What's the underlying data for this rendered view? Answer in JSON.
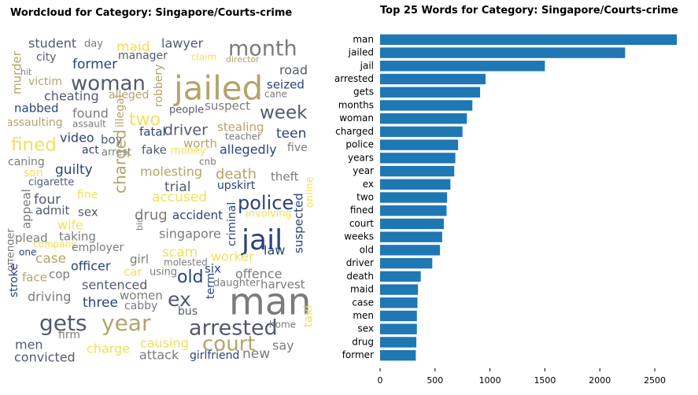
{
  "wordcloud": {
    "title": "Wordcloud for Category: Singapore/Courts-crime",
    "palette": [
      "#B4A46A",
      "#29447A",
      "#7B7B7B",
      "#F0E15A",
      "#535A6E"
    ],
    "words": [
      {
        "text": "student",
        "color": "#535A6E"
      },
      {
        "text": "day",
        "color": "#7B7B7B"
      },
      {
        "text": "maid",
        "color": "#F0E15A"
      },
      {
        "text": "lawyer",
        "color": "#535A6E"
      },
      {
        "text": "month",
        "color": "#7B7B7B"
      },
      {
        "text": "city",
        "color": "#535A6E"
      },
      {
        "text": "manager",
        "color": "#535A6E"
      },
      {
        "text": "claim",
        "color": "#F0E15A"
      },
      {
        "text": "director",
        "color": "#B4A46A"
      },
      {
        "text": "former",
        "color": "#29447A"
      },
      {
        "text": "road",
        "color": "#535A6E"
      },
      {
        "text": "murder",
        "color": "#B4A46A"
      },
      {
        "text": "hit",
        "color": "#7B7B7B"
      },
      {
        "text": "victim",
        "color": "#B4A46A"
      },
      {
        "text": "woman",
        "color": "#535A6E"
      },
      {
        "text": "jailed",
        "color": "#B4A46A"
      },
      {
        "text": "robbery",
        "color": "#B4A46A"
      },
      {
        "text": "seized",
        "color": "#29447A"
      },
      {
        "text": "cane",
        "color": "#7B7B7B"
      },
      {
        "text": "cheating",
        "color": "#535A6E"
      },
      {
        "text": "alleged",
        "color": "#B4A46A"
      },
      {
        "text": "nabbed",
        "color": "#29447A"
      },
      {
        "text": "found",
        "color": "#7B7B7B"
      },
      {
        "text": "illegal",
        "color": "#B4A46A"
      },
      {
        "text": "people",
        "color": "#535A6E"
      },
      {
        "text": "suspect",
        "color": "#7B7B7B"
      },
      {
        "text": "week",
        "color": "#535A6E"
      },
      {
        "text": "assaulting",
        "color": "#B4A46A"
      },
      {
        "text": "assault",
        "color": "#7B7B7B"
      },
      {
        "text": "two",
        "color": "#F0E15A"
      },
      {
        "text": "fatal",
        "color": "#29447A"
      },
      {
        "text": "driver",
        "color": "#535A6E"
      },
      {
        "text": "stealing",
        "color": "#B4A46A"
      },
      {
        "text": "teacher",
        "color": "#7B7B7B"
      },
      {
        "text": "teen",
        "color": "#29447A"
      },
      {
        "text": "fined",
        "color": "#F0E15A"
      },
      {
        "text": "video",
        "color": "#29447A"
      },
      {
        "text": "boy",
        "color": "#535A6E"
      },
      {
        "text": "act",
        "color": "#29447A"
      },
      {
        "text": "arrest",
        "color": "#7B7B7B"
      },
      {
        "text": "fake",
        "color": "#535A6E"
      },
      {
        "text": "worth",
        "color": "#B4A46A"
      },
      {
        "text": "money",
        "color": "#F0E15A"
      },
      {
        "text": "allegedly",
        "color": "#29447A"
      },
      {
        "text": "five",
        "color": "#7B7B7B"
      },
      {
        "text": "caning",
        "color": "#7B7B7B"
      },
      {
        "text": "cnb",
        "color": "#7B7B7B"
      },
      {
        "text": "son",
        "color": "#F0E15A"
      },
      {
        "text": "guilty",
        "color": "#29447A"
      },
      {
        "text": "charged",
        "color": "#B4A46A"
      },
      {
        "text": "molesting",
        "color": "#B4A46A"
      },
      {
        "text": "death",
        "color": "#B4A46A"
      },
      {
        "text": "theft",
        "color": "#7B7B7B"
      },
      {
        "text": "cigarette",
        "color": "#535A6E"
      },
      {
        "text": "upskirt",
        "color": "#29447A"
      },
      {
        "text": "trial",
        "color": "#535A6E"
      },
      {
        "text": "online",
        "color": "#F0E15A"
      },
      {
        "text": "four",
        "color": "#535A6E"
      },
      {
        "text": "fine",
        "color": "#F0E15A"
      },
      {
        "text": "accused",
        "color": "#F0E15A"
      },
      {
        "text": "police",
        "color": "#29447A"
      },
      {
        "text": "appeal",
        "color": "#7B7B7B"
      },
      {
        "text": "admit",
        "color": "#535A6E"
      },
      {
        "text": "sex",
        "color": "#535A6E"
      },
      {
        "text": "drug",
        "color": "#7B7B7B"
      },
      {
        "text": "accident",
        "color": "#29447A"
      },
      {
        "text": "involving",
        "color": "#F0E15A"
      },
      {
        "text": "wife",
        "color": "#F0E15A"
      },
      {
        "text": "criminal",
        "color": "#29447A"
      },
      {
        "text": "jail",
        "color": "#29447A"
      },
      {
        "text": "plead",
        "color": "#7B7B7B"
      },
      {
        "text": "taking",
        "color": "#7B7B7B"
      },
      {
        "text": "bid",
        "color": "#7B7B7B"
      },
      {
        "text": "singapore",
        "color": "#7B7B7B"
      },
      {
        "text": "company",
        "color": "#F0E15A"
      },
      {
        "text": "employer",
        "color": "#7B7B7B"
      },
      {
        "text": "law",
        "color": "#29447A"
      },
      {
        "text": "one",
        "color": "#29447A"
      },
      {
        "text": "case",
        "color": "#B4A46A"
      },
      {
        "text": "scam",
        "color": "#F0E15A"
      },
      {
        "text": "worker",
        "color": "#F0E15A"
      },
      {
        "text": "suspected",
        "color": "#29447A"
      },
      {
        "text": "offender",
        "color": "#7B7B7B"
      },
      {
        "text": "officer",
        "color": "#29447A"
      },
      {
        "text": "girl",
        "color": "#7B7B7B"
      },
      {
        "text": "molested",
        "color": "#7B7B7B"
      },
      {
        "text": "six",
        "color": "#29447A"
      },
      {
        "text": "face",
        "color": "#B4A46A"
      },
      {
        "text": "cop",
        "color": "#7B7B7B"
      },
      {
        "text": "car",
        "color": "#F0E15A"
      },
      {
        "text": "using",
        "color": "#7B7B7B"
      },
      {
        "text": "old",
        "color": "#29447A"
      },
      {
        "text": "offence",
        "color": "#7B7B7B"
      },
      {
        "text": "sentenced",
        "color": "#535A6E"
      },
      {
        "text": "daughter",
        "color": "#7B7B7B"
      },
      {
        "text": "harvest",
        "color": "#7B7B7B"
      },
      {
        "text": "stroke",
        "color": "#29447A"
      },
      {
        "text": "driving",
        "color": "#7B7B7B"
      },
      {
        "text": "women",
        "color": "#7B7B7B"
      },
      {
        "text": "ex",
        "color": "#535A6E"
      },
      {
        "text": "term",
        "color": "#29447A"
      },
      {
        "text": "man",
        "color": "#7B7B7B"
      },
      {
        "text": "three",
        "color": "#29447A"
      },
      {
        "text": "cabby",
        "color": "#7B7B7B"
      },
      {
        "text": "bus",
        "color": "#535A6E"
      },
      {
        "text": "gets",
        "color": "#535A6E"
      },
      {
        "text": "year",
        "color": "#B4A46A"
      },
      {
        "text": "arrested",
        "color": "#535A6E"
      },
      {
        "text": "home",
        "color": "#7B7B7B"
      },
      {
        "text": "taxi",
        "color": "#F0E15A"
      },
      {
        "text": "firm",
        "color": "#7B7B7B"
      },
      {
        "text": "causing",
        "color": "#F0E15A"
      },
      {
        "text": "court",
        "color": "#B4A46A"
      },
      {
        "text": "say",
        "color": "#7B7B7B"
      },
      {
        "text": "men",
        "color": "#535A6E"
      },
      {
        "text": "charge",
        "color": "#F0E15A"
      },
      {
        "text": "convicted",
        "color": "#535A6E"
      },
      {
        "text": "attack",
        "color": "#7B7B7B"
      },
      {
        "text": "girlfriend",
        "color": "#29447A"
      },
      {
        "text": "new",
        "color": "#7B7B7B"
      }
    ]
  },
  "chart_data": {
    "type": "bar",
    "orientation": "horizontal",
    "title": "Top 25 Words for Category: Singapore/Courts-crime",
    "categories": [
      "man",
      "jailed",
      "jail",
      "arrested",
      "gets",
      "months",
      "woman",
      "charged",
      "police",
      "years",
      "year",
      "ex",
      "two",
      "fined",
      "court",
      "weeks",
      "old",
      "driver",
      "death",
      "maid",
      "case",
      "men",
      "sex",
      "drug",
      "former"
    ],
    "values": [
      2700,
      2230,
      1500,
      960,
      910,
      840,
      790,
      750,
      710,
      685,
      675,
      640,
      610,
      605,
      580,
      565,
      545,
      475,
      370,
      345,
      340,
      335,
      335,
      330,
      325
    ],
    "xlim": [
      0,
      2700
    ],
    "xticks": [
      0,
      500,
      1000,
      1500,
      2000,
      2500
    ],
    "xlabel": "",
    "ylabel": "",
    "grid": false,
    "bar_color": "#1F77B4"
  }
}
